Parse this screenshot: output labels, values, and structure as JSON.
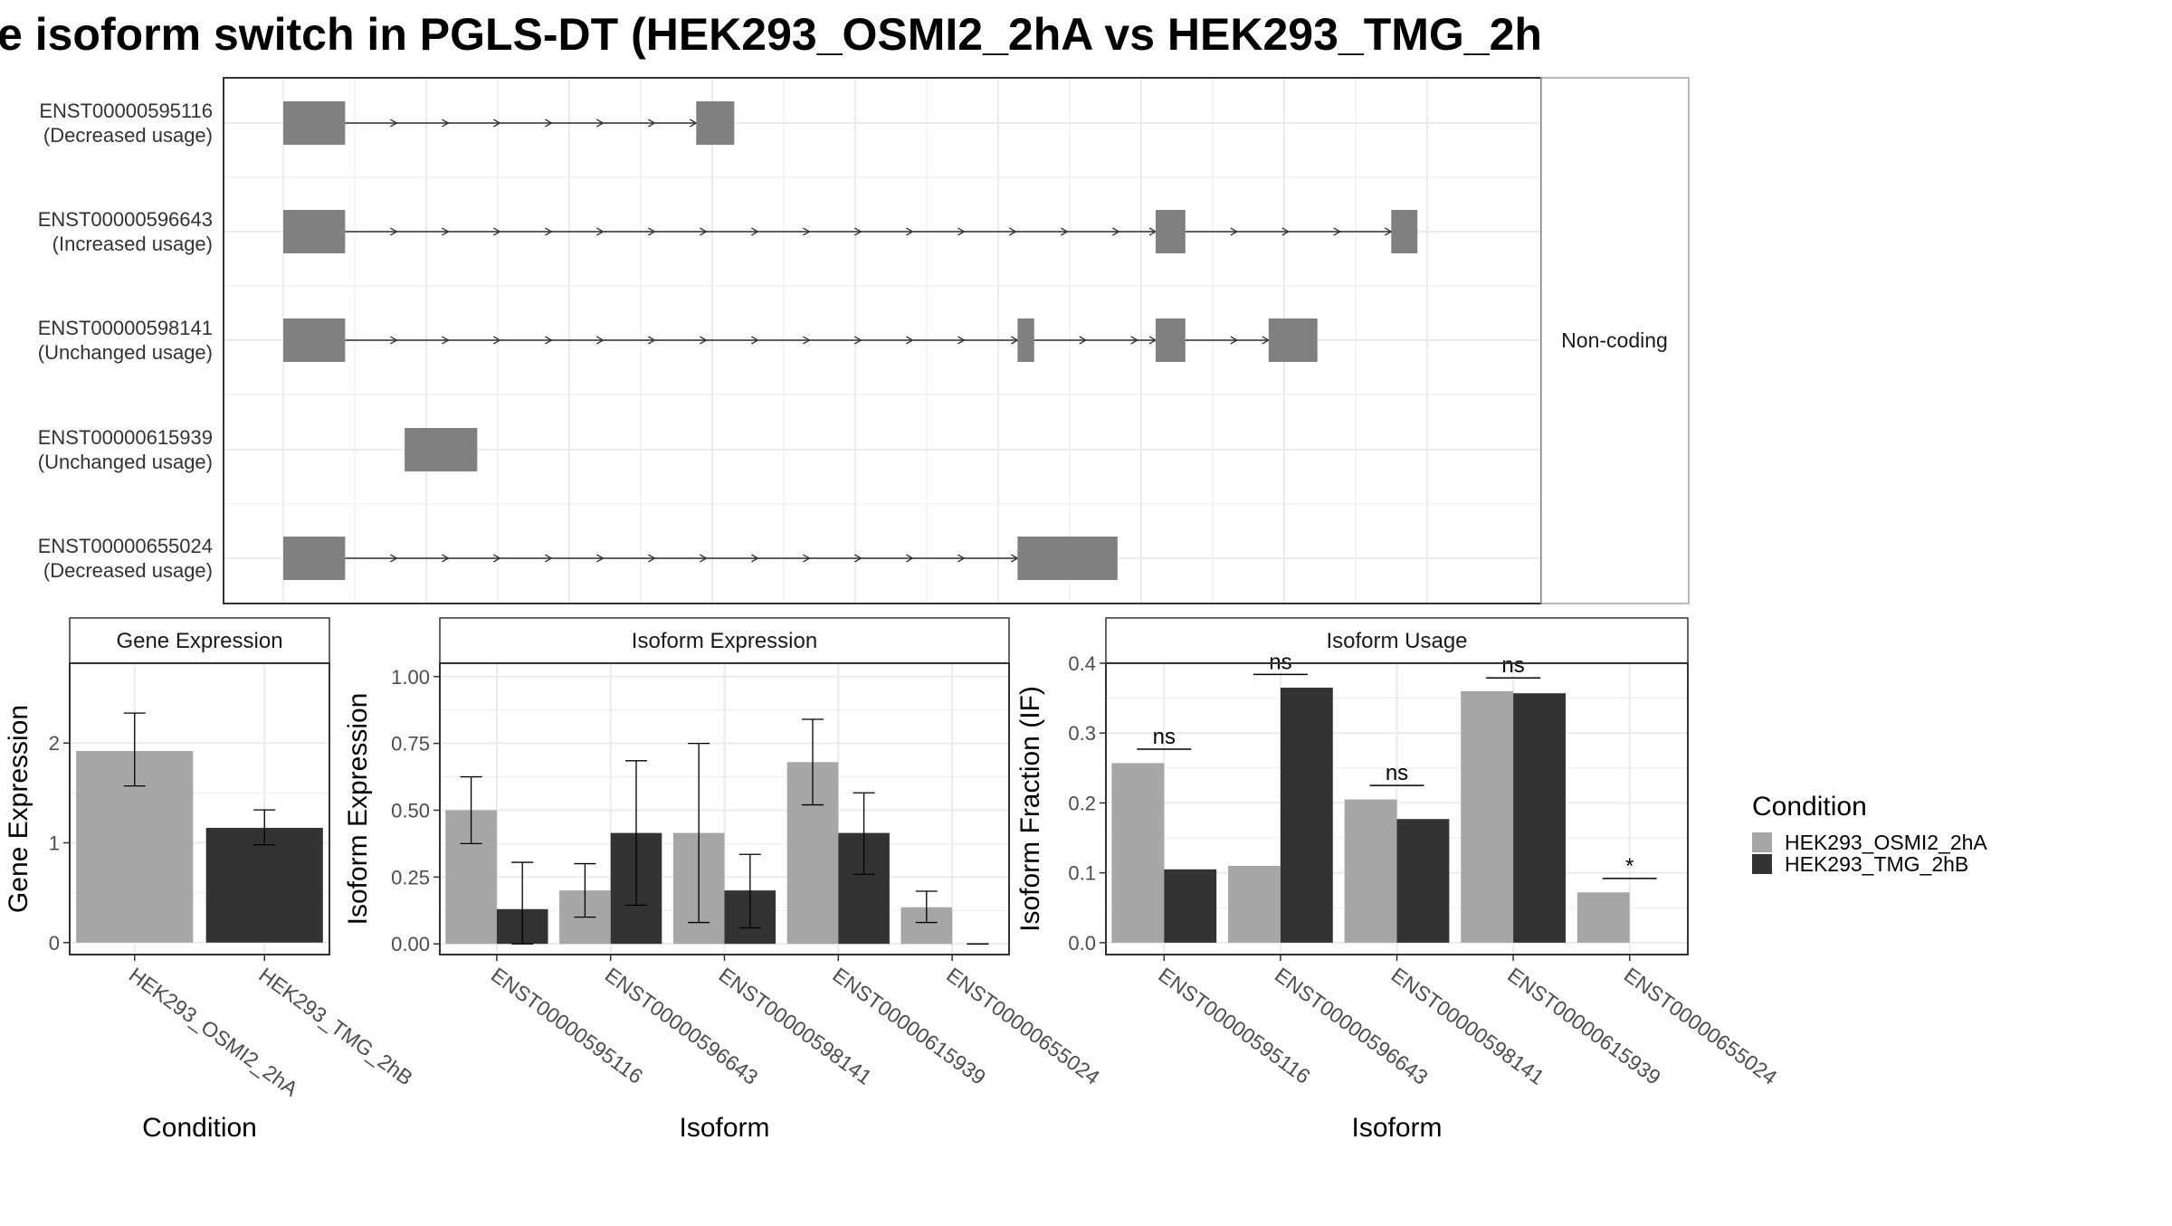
{
  "title": "e isoform switch in PGLS-DT (HEK293_OSMI2_2hA vs HEK293_TMG_2h",
  "colors": {
    "condition1": "#a6a6a6",
    "condition2": "#333333",
    "exon": "#808080",
    "intron": "#333333",
    "grid": "#ebebeb",
    "panel_border": "#333333",
    "strip_border": "#a0a0a0"
  },
  "legend": {
    "title": "Condition",
    "items": [
      "HEK293_OSMI2_2hA",
      "HEK293_TMG_2hB"
    ]
  },
  "chart_data": [
    {
      "type": "gene-structure",
      "strip_label": "Non-coding",
      "gridlines": true,
      "transcripts": [
        {
          "id": "ENST00000595116",
          "usage": "(Decreased usage)",
          "exons": [
            [
              0.0,
              0.052
            ],
            [
              0.347,
              0.379
            ]
          ]
        },
        {
          "id": "ENST00000596643",
          "usage": "(Increased usage)",
          "exons": [
            [
              0.0,
              0.052
            ],
            [
              0.733,
              0.758
            ],
            [
              0.931,
              0.953
            ]
          ]
        },
        {
          "id": "ENST00000598141",
          "usage": "(Unchanged usage)",
          "exons": [
            [
              0.0,
              0.052
            ],
            [
              0.617,
              0.631
            ],
            [
              0.733,
              0.758
            ],
            [
              0.828,
              0.869
            ]
          ]
        },
        {
          "id": "ENST00000615939",
          "usage": "(Unchanged usage)",
          "exons": [
            [
              0.102,
              0.163
            ]
          ]
        },
        {
          "id": "ENST00000655024",
          "usage": "(Decreased usage)",
          "exons": [
            [
              0.0,
              0.052
            ],
            [
              0.617,
              0.701
            ]
          ]
        }
      ]
    },
    {
      "type": "bar",
      "title": "Gene Expression",
      "xlabel": "Condition",
      "ylabel": "Gene Expression",
      "ylim": [
        -0.12,
        2.8
      ],
      "yticks": [
        0,
        1,
        2
      ],
      "categories": [
        "HEK293_OSMI2_2hA",
        "HEK293_TMG_2hB"
      ],
      "values": [
        1.92,
        1.15
      ],
      "errors": [
        [
          1.57,
          2.3
        ],
        [
          0.98,
          1.33
        ]
      ]
    },
    {
      "type": "bar",
      "title": "Isoform Expression",
      "xlabel": "Isoform",
      "ylabel": "Isoform Expression",
      "ylim": [
        -0.04,
        1.05
      ],
      "yticks": [
        0.0,
        0.25,
        0.5,
        0.75,
        1.0
      ],
      "ytick_labels": [
        "0.00",
        "0.25",
        "0.50",
        "0.75",
        "1.00"
      ],
      "categories": [
        "ENST00000595116",
        "ENST00000596643",
        "ENST00000598141",
        "ENST00000615939",
        "ENST00000655024"
      ],
      "series": [
        {
          "name": "HEK293_OSMI2_2hA",
          "values": [
            0.5,
            0.2,
            0.415,
            0.68,
            0.137
          ],
          "errors": [
            [
              0.375,
              0.625
            ],
            [
              0.1,
              0.3
            ],
            [
              0.08,
              0.75
            ],
            [
              0.52,
              0.84
            ],
            [
              0.08,
              0.197
            ]
          ]
        },
        {
          "name": "HEK293_TMG_2hB",
          "values": [
            0.13,
            0.415,
            0.2,
            0.415,
            0.0
          ],
          "errors": [
            [
              0.0,
              0.305
            ],
            [
              0.145,
              0.685
            ],
            [
              0.06,
              0.335
            ],
            [
              0.26,
              0.565
            ],
            [
              0.0,
              0.0
            ]
          ]
        }
      ]
    },
    {
      "type": "bar",
      "title": "Isoform Usage",
      "xlabel": "Isoform",
      "ylabel": "Isoform Fraction (IF)",
      "ylim": [
        -0.017,
        0.4
      ],
      "yticks": [
        0.0,
        0.1,
        0.2,
        0.3,
        0.4
      ],
      "ytick_labels": [
        "0.0",
        "0.1",
        "0.2",
        "0.3",
        "0.4"
      ],
      "categories": [
        "ENST00000595116",
        "ENST00000596643",
        "ENST00000598141",
        "ENST00000615939",
        "ENST00000655024"
      ],
      "series": [
        {
          "name": "HEK293_OSMI2_2hA",
          "values": [
            0.257,
            0.11,
            0.205,
            0.36,
            0.072
          ]
        },
        {
          "name": "HEK293_TMG_2hB",
          "values": [
            0.105,
            0.365,
            0.177,
            0.357,
            0.0
          ]
        }
      ],
      "significance": [
        {
          "label": "ns",
          "y": 0.277
        },
        {
          "label": "ns",
          "y": 0.384
        },
        {
          "label": "ns",
          "y": 0.225
        },
        {
          "label": "ns",
          "y": 0.379
        },
        {
          "label": "*",
          "y": 0.092
        }
      ]
    }
  ]
}
